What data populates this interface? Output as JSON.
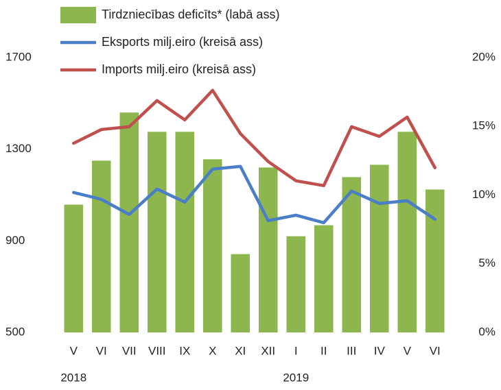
{
  "chart_data": {
    "type": "combo",
    "categories": [
      "V",
      "VI",
      "VII",
      "VIII",
      "IX",
      "X",
      "XI",
      "XII",
      "I",
      "II",
      "III",
      "IV",
      "V",
      "VI"
    ],
    "x_groups": [
      {
        "label": "2018",
        "start": 0
      },
      {
        "label": "2019",
        "start": 8
      }
    ],
    "series": [
      {
        "name": "Tirdzniecības deficīts* (labā ass)",
        "type": "bar",
        "axis": "y2",
        "color": "#8db74e",
        "values": [
          9.3,
          12.5,
          16.0,
          14.6,
          14.6,
          12.6,
          5.7,
          12.0,
          7.0,
          7.8,
          11.3,
          12.2,
          14.6,
          10.4
        ]
      },
      {
        "name": "Eksports milj.eiro (kreisā ass)",
        "type": "line",
        "color": "#4a7ec6",
        "values": [
          1111,
          1081,
          1015,
          1126,
          1069,
          1213,
          1225,
          988,
          1012,
          979,
          1117,
          1063,
          1075,
          994
        ]
      },
      {
        "name": "Imports milj.eiro (kreisā ass)",
        "type": "line",
        "color": "#c0504d",
        "values": [
          1326,
          1386,
          1398,
          1512,
          1428,
          1557,
          1368,
          1246,
          1162,
          1141,
          1398,
          1356,
          1440,
          1219
        ]
      }
    ],
    "ylim": [
      500,
      1700
    ],
    "yticks": [
      500,
      900,
      1300,
      1700
    ],
    "y2lim": [
      0,
      20
    ],
    "y2ticks": [
      {
        "value": 0,
        "label": "0%"
      },
      {
        "value": 5,
        "label": "5%"
      },
      {
        "value": 10,
        "label": "10%"
      },
      {
        "value": 15,
        "label": "15%"
      },
      {
        "value": 20,
        "label": "20%"
      }
    ],
    "grid": false
  }
}
